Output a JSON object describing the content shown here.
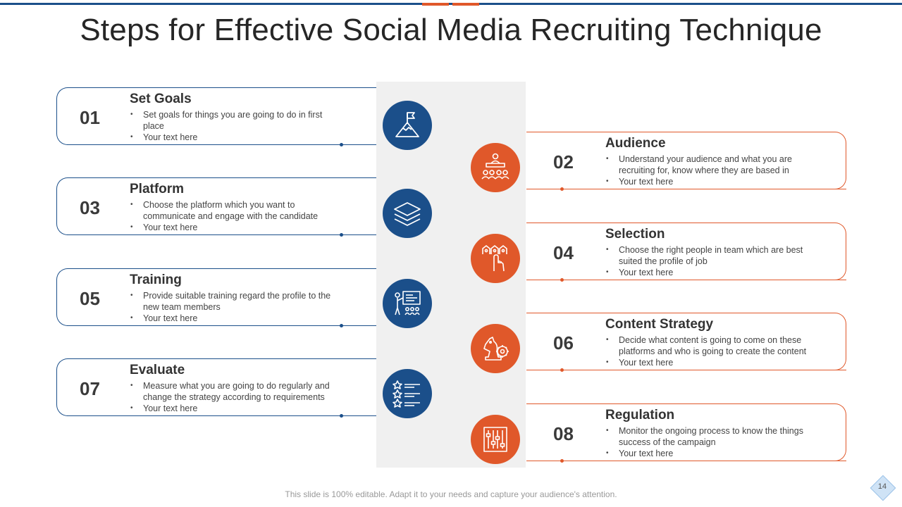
{
  "title": "Steps for Effective Social Media Recruiting Technique",
  "colors": {
    "blue": "#1b4f8a",
    "orange": "#e0582a"
  },
  "steps": [
    {
      "num": "01",
      "heading": "Set Goals",
      "bullets": [
        "Set goals for things you are going to do in first place",
        "Your text here"
      ],
      "icon": "mountain-flag-icon"
    },
    {
      "num": "02",
      "heading": "Audience",
      "bullets": [
        "Understand your audience and what you are recruiting for, know where they are based in",
        "Your text here"
      ],
      "icon": "presenter-audience-icon"
    },
    {
      "num": "03",
      "heading": "Platform",
      "bullets": [
        "Choose the platform which you want to communicate and engage with the candidate",
        "Your text here"
      ],
      "icon": "layers-icon"
    },
    {
      "num": "04",
      "heading": "Selection",
      "bullets": [
        "Choose the right people in team which are best suited the profile of job",
        "Your text here"
      ],
      "icon": "hand-select-people-icon"
    },
    {
      "num": "05",
      "heading": "Training",
      "bullets": [
        "Provide suitable training regard the profile to the new team members",
        "Your text here"
      ],
      "icon": "trainer-board-icon"
    },
    {
      "num": "06",
      "heading": "Content Strategy",
      "bullets": [
        "Decide what content is going to come on these platforms and who is going to create the content",
        "Your text here"
      ],
      "icon": "chess-knight-gear-icon"
    },
    {
      "num": "07",
      "heading": "Evaluate",
      "bullets": [
        "Measure what you are going to do regularly and change the strategy according to requirements",
        "Your text here"
      ],
      "icon": "star-rating-list-icon"
    },
    {
      "num": "08",
      "heading": "Regulation",
      "bullets": [
        "Monitor the ongoing process to know the things success of the campaign",
        "Your text here"
      ],
      "icon": "sliders-icon"
    }
  ],
  "footer": "This slide is 100% editable. Adapt it to your needs and capture your audience's attention.",
  "page_number": "14"
}
